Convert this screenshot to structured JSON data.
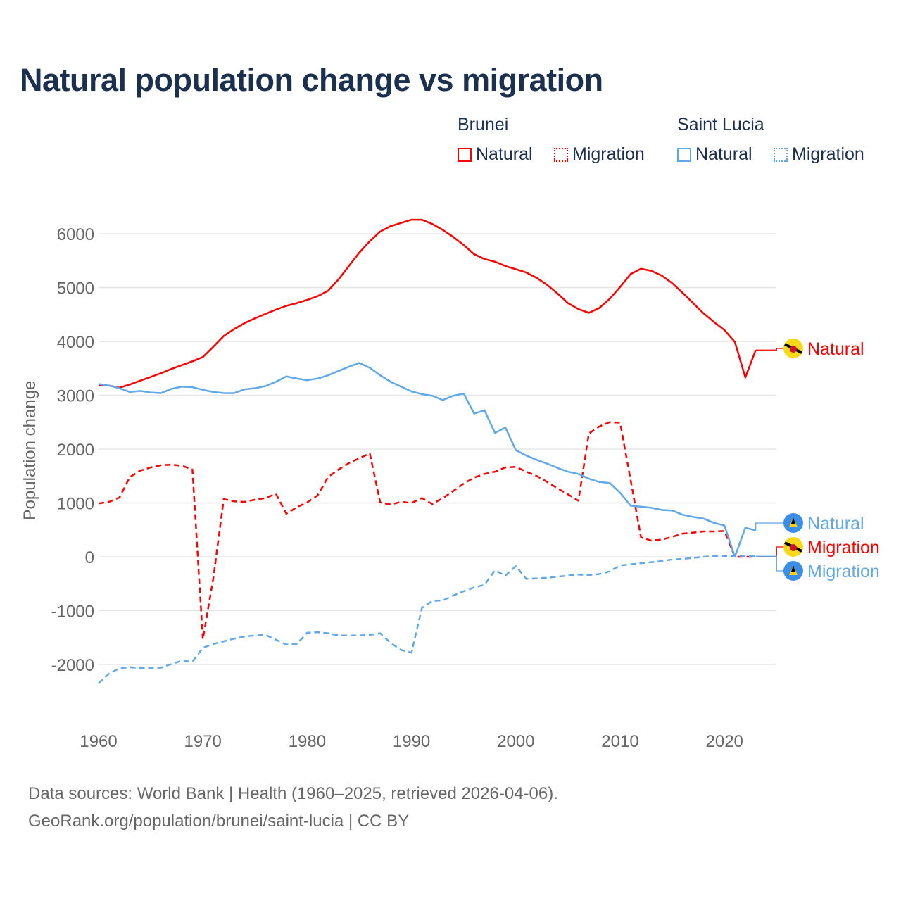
{
  "title": "Natural population change vs migration",
  "legend": {
    "groups": [
      {
        "name": "Brunei",
        "color": "#ff0000",
        "items": [
          "Natural",
          "Migration"
        ]
      },
      {
        "name": "Saint Lucia",
        "color": "#5fa8ea",
        "items": [
          "Natural",
          "Migration"
        ]
      }
    ]
  },
  "footer": {
    "line1": "Data sources: World Bank | Health (1960–2025, retrieved 2026-04-06).",
    "line2": "GeoRank.org/population/brunei/saint-lucia | CC BY"
  },
  "chart_data": {
    "type": "line",
    "title": "Natural population change vs migration",
    "xlabel": "",
    "ylabel": "Population change",
    "xlim": [
      1960,
      2025
    ],
    "ylim": [
      -2500,
      6500
    ],
    "x_ticks": [
      1960,
      1970,
      1980,
      1990,
      2000,
      2010,
      2020
    ],
    "y_ticks": [
      -2000,
      -1000,
      0,
      1000,
      2000,
      3000,
      4000,
      5000,
      6000
    ],
    "y_tick_labels": [
      "-2000",
      "-1000",
      "0",
      "1000",
      "2000",
      "3000",
      "4000",
      "5000",
      "6000"
    ],
    "grid": true,
    "x_start": 1960,
    "series": [
      {
        "name": "Brunei Natural",
        "label": "Natural",
        "color": "#ff0000",
        "dash": "solid",
        "flag": "brunei-flag",
        "values": [
          3180,
          3180,
          3140,
          3200,
          3270,
          3340,
          3410,
          3490,
          3560,
          3630,
          3710,
          3900,
          4100,
          4230,
          4340,
          4430,
          4510,
          4590,
          4660,
          4710,
          4770,
          4840,
          4940,
          5150,
          5400,
          5650,
          5860,
          6040,
          6140,
          6200,
          6260,
          6260,
          6180,
          6070,
          5940,
          5790,
          5620,
          5530,
          5480,
          5400,
          5340,
          5280,
          5180,
          5050,
          4890,
          4710,
          4600,
          4530,
          4620,
          4790,
          5010,
          5250,
          5350,
          5310,
          5220,
          5080,
          4900,
          4710,
          4520,
          4360,
          4210,
          3990,
          3330,
          3840
        ]
      },
      {
        "name": "Brunei Migration",
        "label": "Migration",
        "color": "#ff0000",
        "dash": "dashed",
        "flag": "brunei-flag",
        "values": [
          990,
          1020,
          1100,
          1480,
          1600,
          1660,
          1700,
          1710,
          1690,
          1620,
          -1530,
          -400,
          1070,
          1030,
          1020,
          1060,
          1090,
          1170,
          800,
          920,
          1010,
          1140,
          1480,
          1620,
          1740,
          1830,
          1920,
          1010,
          970,
          1020,
          1000,
          1090,
          980,
          1090,
          1220,
          1360,
          1470,
          1540,
          1580,
          1660,
          1670,
          1580,
          1500,
          1390,
          1270,
          1160,
          1040,
          2290,
          2420,
          2500,
          2490,
          1430,
          360,
          300,
          320,
          370,
          430,
          450,
          470,
          470,
          480,
          0,
          0,
          0
        ]
      },
      {
        "name": "Saint Lucia Natural",
        "label": "Natural",
        "color": "#5fa8ea",
        "dash": "solid",
        "flag": "saint-lucia-flag",
        "values": [
          3210,
          3180,
          3130,
          3060,
          3080,
          3050,
          3040,
          3120,
          3160,
          3150,
          3100,
          3060,
          3040,
          3040,
          3110,
          3130,
          3170,
          3250,
          3350,
          3310,
          3280,
          3310,
          3370,
          3450,
          3530,
          3600,
          3510,
          3370,
          3250,
          3160,
          3070,
          3020,
          2990,
          2910,
          2990,
          3030,
          2660,
          2720,
          2300,
          2400,
          1980,
          1880,
          1800,
          1730,
          1650,
          1580,
          1540,
          1450,
          1390,
          1370,
          1190,
          950,
          930,
          910,
          870,
          860,
          780,
          740,
          710,
          630,
          580,
          0,
          540,
          490
        ]
      },
      {
        "name": "Saint Lucia Migration",
        "label": "Migration",
        "color": "#5fa8ea",
        "dash": "dashed",
        "flag": "saint-lucia-flag",
        "values": [
          -2350,
          -2170,
          -2070,
          -2050,
          -2070,
          -2060,
          -2060,
          -1990,
          -1930,
          -1950,
          -1690,
          -1620,
          -1570,
          -1520,
          -1480,
          -1460,
          -1450,
          -1540,
          -1630,
          -1620,
          -1410,
          -1400,
          -1420,
          -1460,
          -1460,
          -1460,
          -1450,
          -1420,
          -1600,
          -1730,
          -1780,
          -950,
          -820,
          -810,
          -720,
          -640,
          -570,
          -520,
          -250,
          -350,
          -170,
          -410,
          -400,
          -390,
          -370,
          -350,
          -330,
          -340,
          -320,
          -270,
          -160,
          -140,
          -120,
          -100,
          -80,
          -50,
          -40,
          -20,
          0,
          10,
          10,
          10,
          10,
          10
        ]
      }
    ]
  }
}
